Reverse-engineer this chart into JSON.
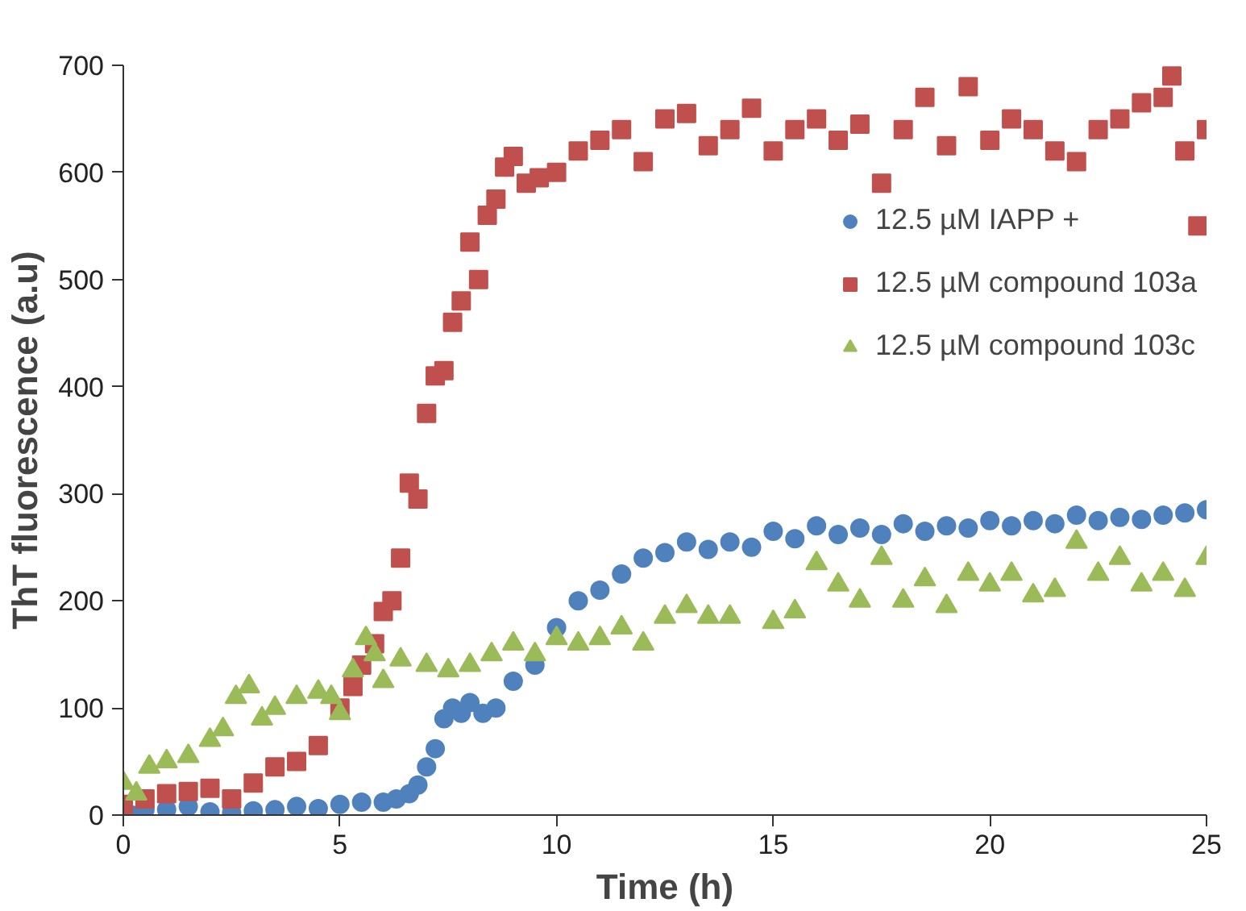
{
  "chart_data": {
    "type": "scatter",
    "xlabel": "Time (h)",
    "ylabel": "ThT fluorescence (a.u)",
    "xlim": [
      0,
      25
    ],
    "xticks": [
      0,
      5,
      10,
      15,
      20,
      25
    ],
    "ylim": [
      0,
      700
    ],
    "yticks": [
      0,
      100,
      200,
      300,
      400,
      500,
      600,
      700
    ],
    "grid": false,
    "legend": "right",
    "series": [
      {
        "name": "12.5 µM IAPP +",
        "color": "#4f81bd",
        "marker": "circle",
        "x": [
          0.2,
          0.5,
          1,
          1.5,
          2,
          2.5,
          3,
          3.5,
          4,
          4.5,
          5,
          5.5,
          6,
          6.3,
          6.6,
          6.8,
          7,
          7.2,
          7.4,
          7.6,
          7.8,
          8,
          8.3,
          8.6,
          9,
          9.5,
          10,
          10.5,
          11,
          11.5,
          12,
          12.5,
          13,
          13.5,
          14,
          14.5,
          15,
          15.5,
          16,
          16.5,
          17,
          17.5,
          18,
          18.5,
          19,
          19.5,
          20,
          20.5,
          21,
          21.5,
          22,
          22.5,
          23,
          23.5,
          24,
          24.5,
          25
        ],
        "values": [
          0,
          5,
          5,
          8,
          3,
          2,
          4,
          5,
          8,
          6,
          10,
          12,
          12,
          15,
          20,
          28,
          45,
          62,
          90,
          100,
          95,
          105,
          95,
          100,
          125,
          140,
          175,
          200,
          210,
          225,
          240,
          245,
          255,
          248,
          255,
          250,
          265,
          258,
          270,
          262,
          268,
          262,
          272,
          265,
          270,
          268,
          275,
          270,
          275,
          272,
          280,
          275,
          278,
          276,
          280,
          282,
          285
        ]
      },
      {
        "name": "12.5 µM compound 103a",
        "color": "#c0504d",
        "marker": "square",
        "x": [
          0,
          0.5,
          1,
          1.5,
          2,
          2.5,
          3,
          3.5,
          4,
          4.5,
          5,
          5.3,
          5.5,
          5.8,
          6,
          6.2,
          6.4,
          6.6,
          6.8,
          7,
          7.2,
          7.4,
          7.6,
          7.8,
          8,
          8.2,
          8.4,
          8.6,
          8.8,
          9,
          9.3,
          9.6,
          10,
          10.5,
          11,
          11.5,
          12,
          12.5,
          13,
          13.5,
          14,
          14.5,
          15,
          15.5,
          16,
          16.5,
          17,
          17.5,
          18,
          18.5,
          19,
          19.5,
          20,
          20.5,
          21,
          21.5,
          22,
          22.5,
          23,
          23.5,
          24,
          24.2,
          24.5,
          24.8,
          25
        ],
        "values": [
          10,
          15,
          20,
          22,
          25,
          15,
          30,
          45,
          50,
          65,
          100,
          120,
          140,
          160,
          190,
          200,
          240,
          310,
          295,
          375,
          410,
          415,
          460,
          480,
          535,
          500,
          560,
          575,
          605,
          615,
          590,
          595,
          600,
          620,
          630,
          640,
          610,
          650,
          655,
          625,
          640,
          660,
          620,
          640,
          650,
          630,
          645,
          590,
          640,
          670,
          625,
          680,
          630,
          650,
          640,
          620,
          610,
          640,
          650,
          665,
          670,
          690,
          620,
          550,
          640
        ]
      },
      {
        "name": "12.5 µM compound 103c",
        "color": "#9bbb59",
        "marker": "triangle",
        "x": [
          0,
          0.3,
          0.6,
          1,
          1.5,
          2,
          2.3,
          2.6,
          2.9,
          3.2,
          3.5,
          4,
          4.5,
          4.8,
          5,
          5.3,
          5.6,
          5.8,
          6,
          6.4,
          7,
          7.5,
          8,
          8.5,
          9,
          9.5,
          10,
          10.5,
          11,
          11.5,
          12,
          12.5,
          13,
          13.5,
          14,
          15,
          15.5,
          16,
          16.5,
          17,
          17.5,
          18,
          18.5,
          19,
          19.5,
          20,
          20.5,
          21,
          21.5,
          22,
          22.5,
          23,
          23.5,
          24,
          24.5,
          25
        ],
        "values": [
          30,
          20,
          45,
          50,
          55,
          70,
          80,
          110,
          120,
          90,
          100,
          110,
          115,
          110,
          95,
          135,
          165,
          150,
          125,
          145,
          140,
          135,
          140,
          150,
          160,
          150,
          165,
          160,
          165,
          175,
          160,
          185,
          195,
          185,
          185,
          180,
          190,
          235,
          215,
          200,
          240,
          200,
          220,
          195,
          225,
          215,
          225,
          205,
          210,
          255,
          225,
          240,
          215,
          225,
          210,
          240
        ]
      }
    ]
  }
}
